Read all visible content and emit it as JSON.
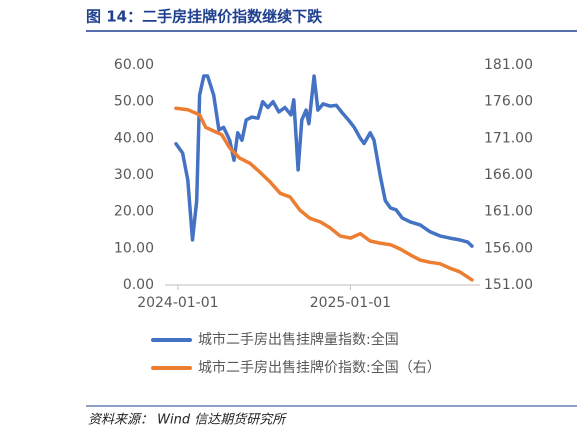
{
  "chart_data": {
    "type": "line",
    "title": "图 14：二手房挂牌价指数继续下跌",
    "source": "资料来源： Wind 信达期货研究所",
    "xlim": [
      "2023-12-28",
      "2025-09-16"
    ],
    "xticks": [
      "2024-01-01",
      "2025-01-01"
    ],
    "ylim": [
      0,
      60
    ],
    "yticks": [
      {
        "value": 0,
        "label": "0.00"
      },
      {
        "value": 10,
        "label": "10.00"
      },
      {
        "value": 20,
        "label": "20.00"
      },
      {
        "value": 30,
        "label": "30.00"
      },
      {
        "value": 40,
        "label": "40.00"
      },
      {
        "value": 50,
        "label": "50.00"
      },
      {
        "value": 60,
        "label": "60.00"
      }
    ],
    "y2lim": [
      151,
      181
    ],
    "y2ticks": [
      {
        "value": 151,
        "label": "151.00"
      },
      {
        "value": 156,
        "label": "156.00"
      },
      {
        "value": 161,
        "label": "161.00"
      },
      {
        "value": 166,
        "label": "166.00"
      },
      {
        "value": 171,
        "label": "171.00"
      },
      {
        "value": 176,
        "label": "176.00"
      },
      {
        "value": 181,
        "label": "181.00"
      }
    ],
    "legend": "bottom",
    "series": [
      {
        "name": "城市二手房出售挂牌量指数:全国",
        "color": "#4472c4",
        "x": [
          "2023-12-28",
          "2024-01-11",
          "2024-01-22",
          "2024-02-01",
          "2024-02-10",
          "2024-02-16",
          "2024-02-25",
          "2024-03-04",
          "2024-03-17",
          "2024-03-28",
          "2024-04-07",
          "2024-04-20",
          "2024-04-29",
          "2024-05-07",
          "2024-05-16",
          "2024-05-25",
          "2024-06-06",
          "2024-06-19",
          "2024-06-29",
          "2024-07-10",
          "2024-07-21",
          "2024-08-02",
          "2024-08-15",
          "2024-08-28",
          "2024-09-03",
          "2024-09-12",
          "2024-09-20",
          "2024-09-29",
          "2024-10-05",
          "2024-10-16",
          "2024-10-24",
          "2024-11-04",
          "2024-11-19",
          "2024-12-02",
          "2024-12-15",
          "2024-12-28",
          "2025-01-09",
          "2025-01-22",
          "2025-01-30",
          "2025-02-12",
          "2025-02-20",
          "2025-03-05",
          "2025-03-16",
          "2025-03-27",
          "2025-04-08",
          "2025-04-21",
          "2025-05-08",
          "2025-05-29",
          "2025-06-19",
          "2025-07-10",
          "2025-07-31",
          "2025-08-21",
          "2025-09-07",
          "2025-09-16"
        ],
        "values": [
          38.5,
          36,
          28.6,
          12.3,
          23,
          51.8,
          57,
          57,
          51.8,
          42.3,
          43,
          39.5,
          34,
          41.5,
          39.5,
          45,
          45.8,
          45.5,
          50,
          48.4,
          50,
          47.2,
          48.4,
          46.4,
          50.5,
          31.4,
          45,
          47.7,
          44,
          57,
          47.7,
          49.4,
          48.8,
          49,
          46.9,
          45,
          43,
          40,
          38.6,
          41.5,
          39.5,
          30,
          23,
          21,
          20.5,
          18.3,
          17.2,
          16.4,
          14.5,
          13.4,
          12.8,
          12.3,
          11.7,
          10.6
        ]
      },
      {
        "name": "城市二手房出售挂牌价指数:全国（右）",
        "color": "#ed7d31",
        "axis": "y2",
        "x": [
          "2023-12-28",
          "2024-01-22",
          "2024-02-16",
          "2024-02-29",
          "2024-03-17",
          "2024-04-03",
          "2024-04-20",
          "2024-05-11",
          "2024-06-02",
          "2024-06-23",
          "2024-07-14",
          "2024-08-05",
          "2024-08-26",
          "2024-09-16",
          "2024-10-07",
          "2024-10-29",
          "2024-11-19",
          "2024-12-10",
          "2025-01-01",
          "2025-01-22",
          "2025-02-12",
          "2025-03-05",
          "2025-03-27",
          "2025-04-17",
          "2025-05-08",
          "2025-05-29",
          "2025-06-19",
          "2025-07-10",
          "2025-07-31",
          "2025-08-21",
          "2025-09-16"
        ],
        "values": [
          175.1,
          174.9,
          174.2,
          172.5,
          172,
          171.5,
          169.7,
          168.3,
          167.6,
          166.4,
          165.1,
          163.5,
          163,
          161.2,
          160.1,
          159.6,
          158.8,
          157.7,
          157.4,
          158,
          157,
          156.7,
          156.5,
          155.9,
          155.1,
          154.4,
          154.1,
          153.9,
          153.3,
          152.8,
          151.7
        ]
      }
    ]
  }
}
